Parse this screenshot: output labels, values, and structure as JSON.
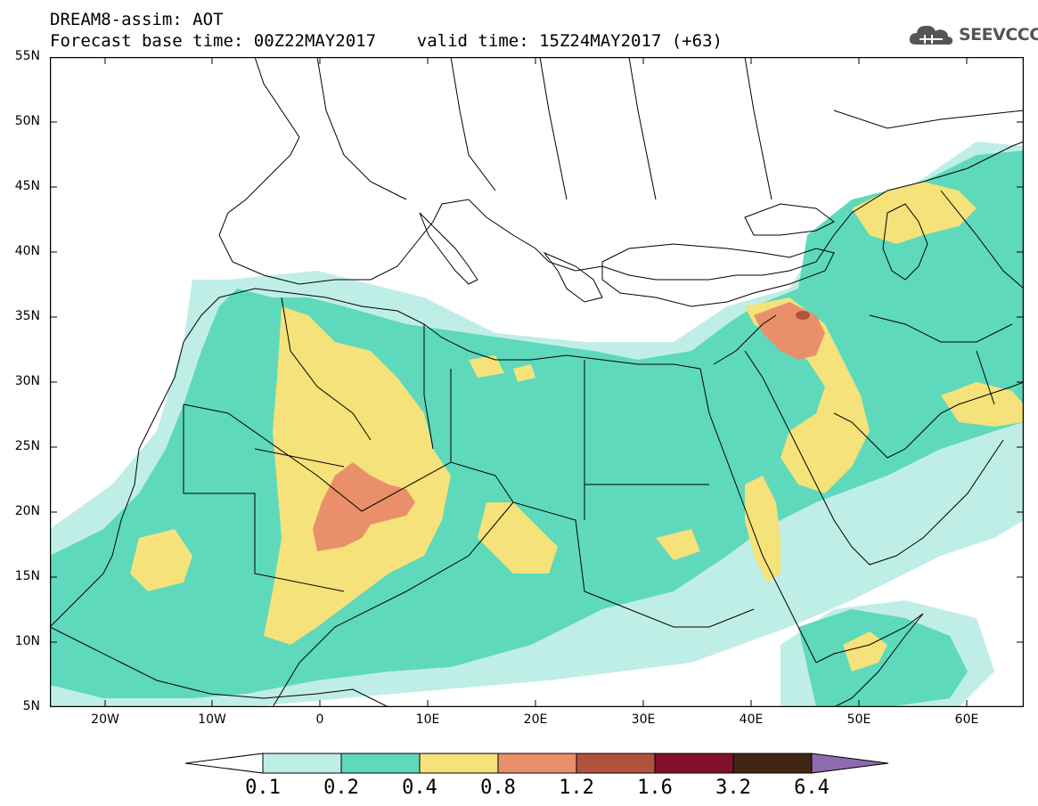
{
  "header": {
    "line1": "DREAM8-assim: AOT",
    "line2": "Forecast base time: 00Z22MAY2017    valid time: 15Z24MAY2017 (+63)"
  },
  "logo": {
    "text": "SEEVCCC",
    "icon": "cloud-icon"
  },
  "map": {
    "latitude_labels": [
      "55N",
      "50N",
      "45N",
      "40N",
      "35N",
      "30N",
      "25N",
      "20N",
      "15N",
      "10N",
      "5N"
    ],
    "longitude_labels": [
      "20W",
      "10W",
      "0",
      "10E",
      "20E",
      "30E",
      "40E",
      "50E",
      "60E"
    ]
  },
  "colorbar": {
    "labels": [
      "0.1",
      "0.2",
      "0.4",
      "0.8",
      "1.2",
      "1.6",
      "3.2",
      "6.4"
    ],
    "colors": [
      "#ffffff",
      "#bfeee6",
      "#5ed9bb",
      "#f5e27a",
      "#e9906b",
      "#b3523c",
      "#80102c",
      "#3f2614",
      "#8c6bb1"
    ]
  },
  "colors": {
    "level_0_1": "#bfeee6",
    "level_0_2": "#5ed9bb",
    "level_0_4": "#f5e27a",
    "level_0_8": "#e9906b",
    "level_1_2": "#b3523c"
  }
}
